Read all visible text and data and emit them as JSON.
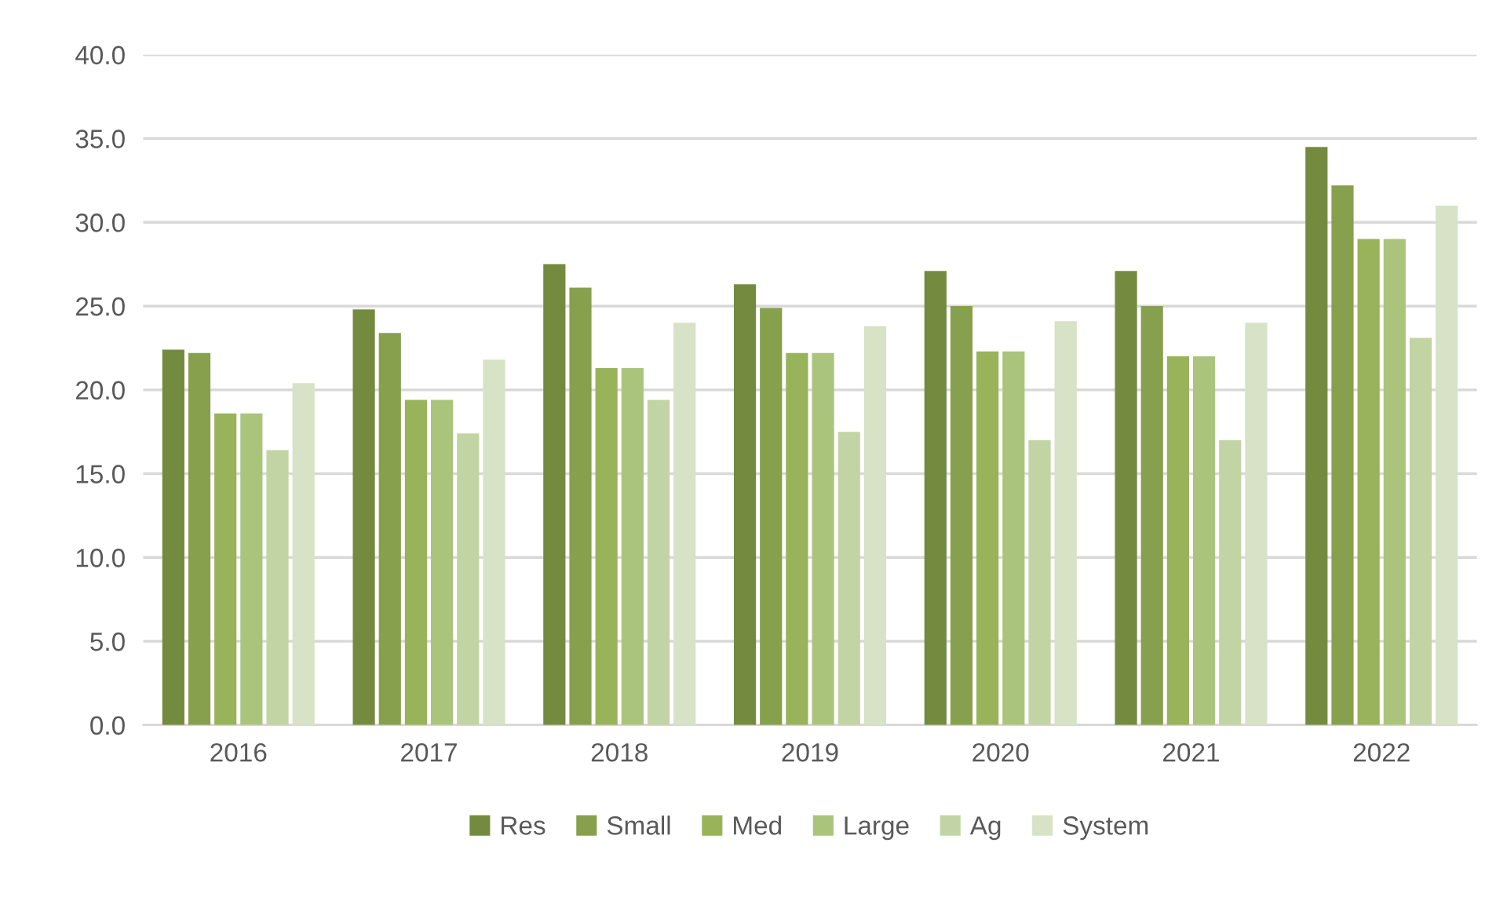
{
  "chart_data": {
    "type": "bar",
    "categories": [
      "2016",
      "2017",
      "2018",
      "2019",
      "2020",
      "2021",
      "2022"
    ],
    "series": [
      {
        "name": "Res",
        "color": "#748b3f",
        "values": [
          22.4,
          24.8,
          27.5,
          26.3,
          27.1,
          27.1,
          34.5
        ]
      },
      {
        "name": "Small",
        "color": "#87a04d",
        "values": [
          22.2,
          23.4,
          26.1,
          24.9,
          25.0,
          25.0,
          32.2
        ]
      },
      {
        "name": "Med",
        "color": "#98b35a",
        "values": [
          18.6,
          19.4,
          21.3,
          22.2,
          22.3,
          22.0,
          29.0
        ]
      },
      {
        "name": "Large",
        "color": "#abc47c",
        "values": [
          18.6,
          19.4,
          21.3,
          22.2,
          22.3,
          22.0,
          29.0
        ]
      },
      {
        "name": "Ag",
        "color": "#c3d4a4",
        "values": [
          16.4,
          17.4,
          19.4,
          17.5,
          17.0,
          17.0,
          23.1
        ]
      },
      {
        "name": "System",
        "color": "#d7e2c6",
        "values": [
          20.4,
          21.8,
          24.0,
          23.8,
          24.1,
          24.0,
          31.0
        ]
      }
    ],
    "ylim": [
      0,
      40
    ],
    "yticks": [
      {
        "value": 0,
        "label": "0.0"
      },
      {
        "value": 5,
        "label": "5.0"
      },
      {
        "value": 10,
        "label": "10.0"
      },
      {
        "value": 15,
        "label": "15.0"
      },
      {
        "value": 20,
        "label": "20.0"
      },
      {
        "value": 25,
        "label": "25.0"
      },
      {
        "value": 30,
        "label": "30.0"
      },
      {
        "value": 35,
        "label": "35.0"
      },
      {
        "value": 40,
        "label": "40.0"
      }
    ],
    "grid": "y",
    "legend": "bottom"
  }
}
